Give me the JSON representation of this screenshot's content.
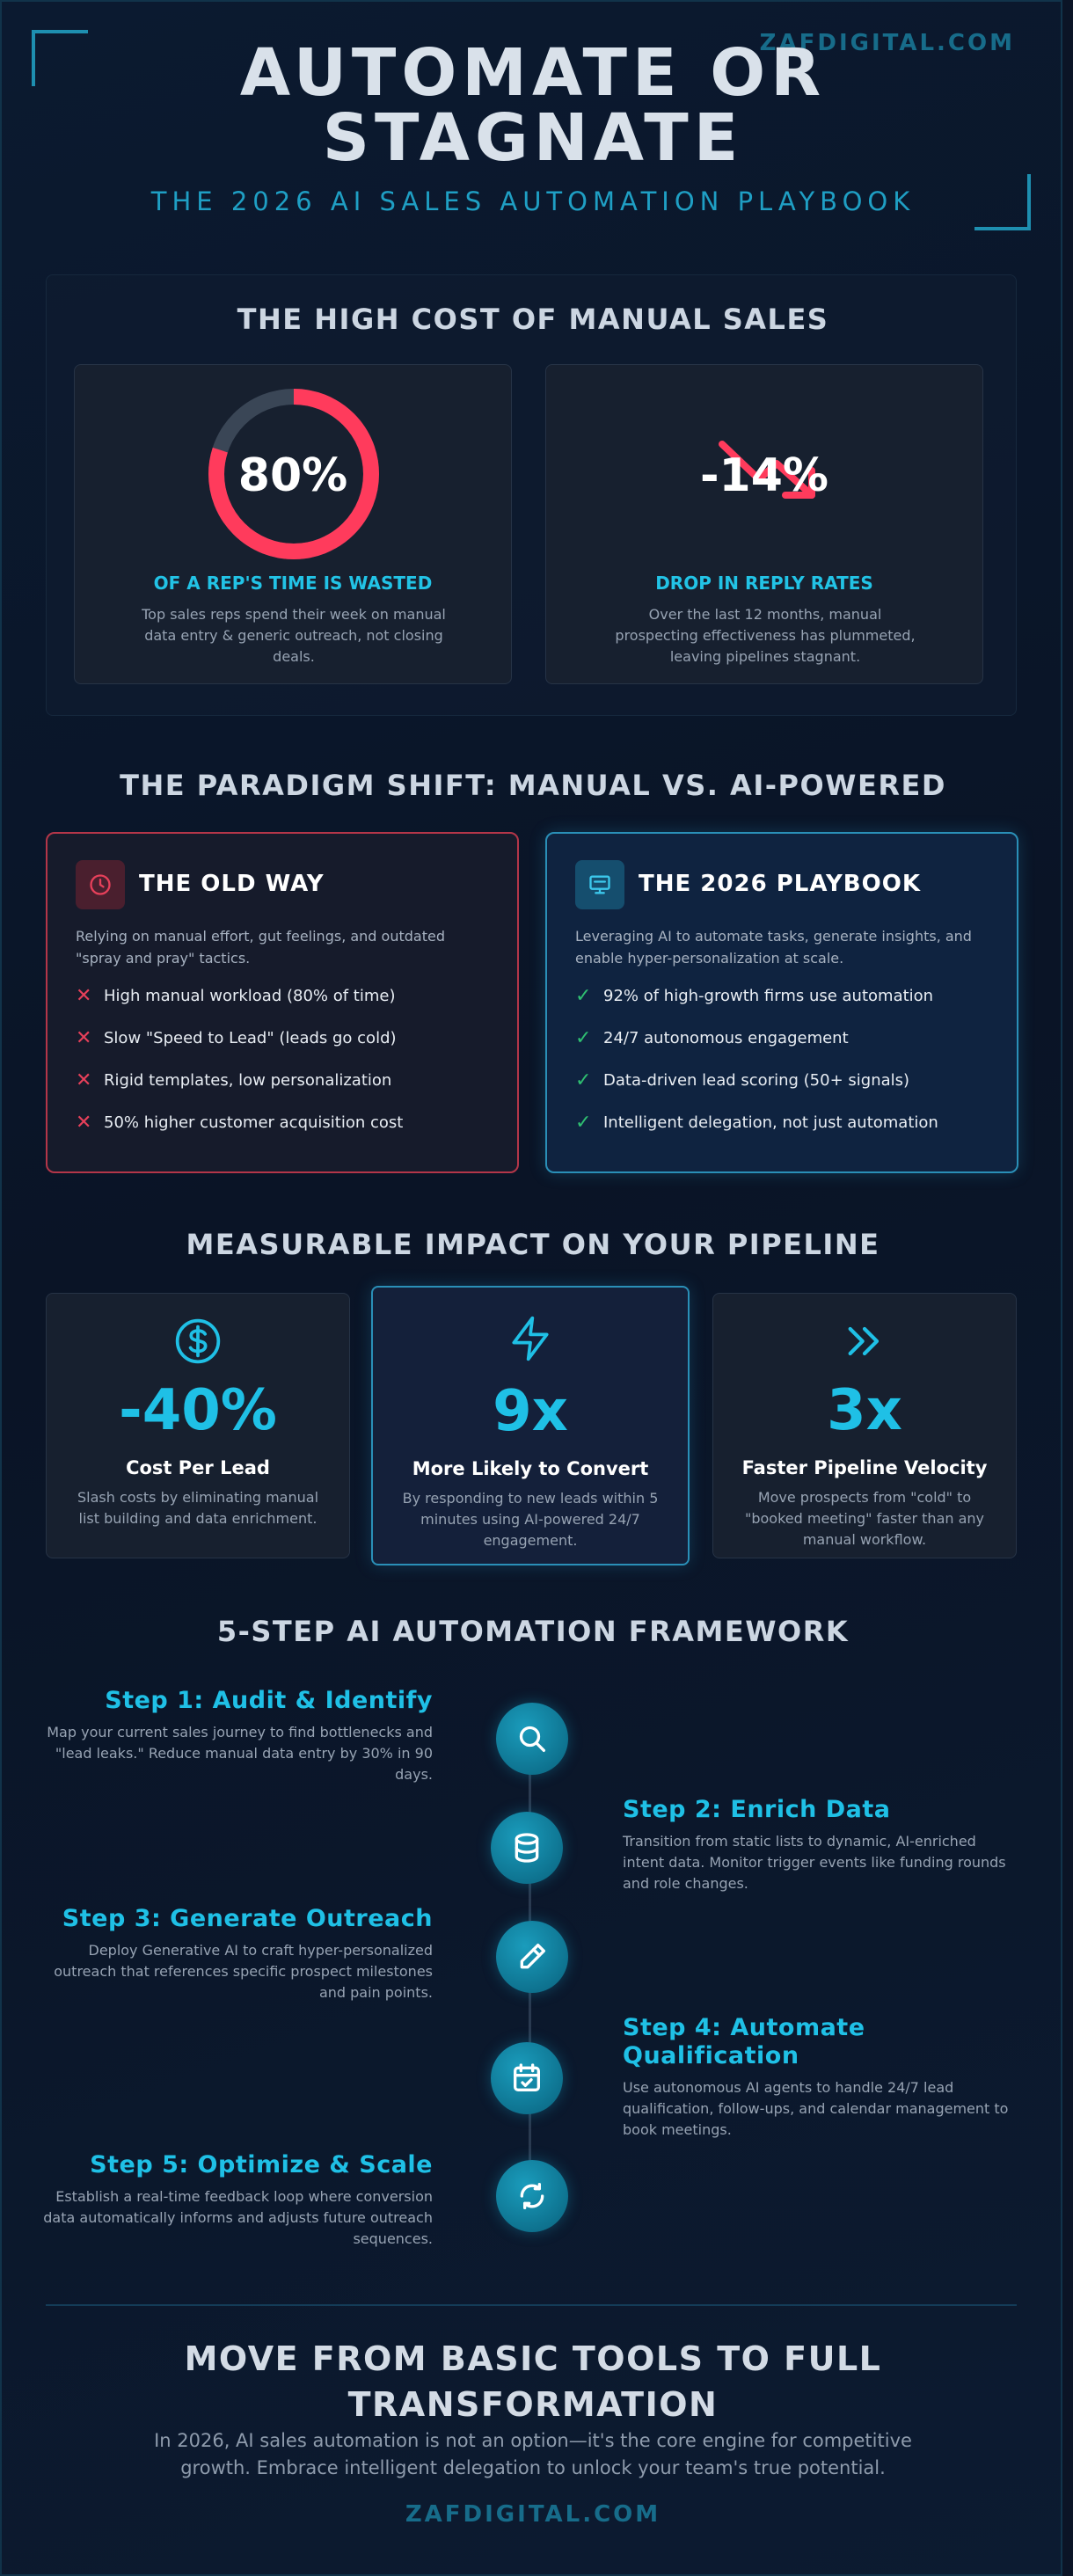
{
  "brand": {
    "top": "ZAFDIGITAL.COM",
    "bottom": "ZAFDIGITAL.COM"
  },
  "hero": {
    "title_line1": "AUTOMATE OR",
    "title_line2": "STAGNATE",
    "subtitle": "THE 2026 AI SALES AUTOMATION PLAYBOOK"
  },
  "cost": {
    "title": "THE HIGH COST OF MANUAL SALES",
    "cards": [
      {
        "value": "80%",
        "fraction": 0.8,
        "caption": "OF A REP'S TIME IS WASTED",
        "description": "Top sales reps spend their week on manual data entry & generic outreach, not closing deals.",
        "icon": "donut-chart-icon"
      },
      {
        "value": "-14%",
        "caption": "DROP IN REPLY RATES",
        "description": "Over the last 12 months, manual prospecting effectiveness has plummeted, leaving pipelines stagnant.",
        "icon": "trend-down-icon"
      }
    ],
    "colors": {
      "accent": "#ff3b5c",
      "track": "#3a4656"
    }
  },
  "paradigm": {
    "title": "THE PARADIGM SHIFT: MANUAL VS. AI-POWERED",
    "old": {
      "heading": "THE OLD WAY",
      "icon": "clock-icon",
      "lead": "Relying on manual effort, gut feelings, and outdated \"spray and pray\" tactics.",
      "items": [
        "High manual workload (80% of time)",
        "Slow \"Speed to Lead\" (leads go cold)",
        "Rigid templates, low personalization",
        "50% higher customer acquisition cost"
      ],
      "marker": "✕"
    },
    "new": {
      "heading": "THE 2026 PLAYBOOK",
      "icon": "monitor-icon",
      "lead": "Leveraging AI to automate tasks, generate insights, and enable hyper-personalization at scale.",
      "items": [
        "92% of high-growth firms use automation",
        "24/7 autonomous engagement",
        "Data-driven lead scoring (50+ signals)",
        "Intelligent delegation, not just automation"
      ],
      "marker": "✓"
    }
  },
  "impact": {
    "title": "MEASURABLE IMPACT ON YOUR PIPELINE",
    "cards": [
      {
        "value": "-40%",
        "label": "Cost Per Lead",
        "description": "Slash costs by eliminating manual list building and data enrichment.",
        "icon": "dollar-icon"
      },
      {
        "value": "9x",
        "label": "More Likely to Convert",
        "description": "By responding to new leads within 5 minutes using AI-powered 24/7 engagement.",
        "icon": "lightning-icon"
      },
      {
        "value": "3x",
        "label": "Faster Pipeline Velocity",
        "description": "Move prospects from \"cold\" to \"booked meeting\" faster than any manual workflow.",
        "icon": "double-chevron-icon"
      }
    ]
  },
  "framework": {
    "title": "5-STEP AI AUTOMATION FRAMEWORK",
    "steps": [
      {
        "title": "Step 1: Audit & Identify",
        "description": "Map your current sales journey to find bottlenecks and \"lead leaks.\" Reduce manual data entry by 30% in 90 days.",
        "icon": "search-icon"
      },
      {
        "title": "Step 2: Enrich Data",
        "description": "Transition from static lists to dynamic, AI-enriched intent data. Monitor trigger events like funding rounds and role changes.",
        "icon": "database-icon"
      },
      {
        "title": "Step 3: Generate Outreach",
        "description": "Deploy Generative AI to craft hyper-personalized outreach that references specific prospect milestones and pain points.",
        "icon": "pencil-icon"
      },
      {
        "title": "Step 4: Automate Qualification",
        "description": "Use autonomous AI agents to handle 24/7 lead qualification, follow-ups, and calendar management to book meetings.",
        "icon": "calendar-check-icon"
      },
      {
        "title": "Step 5: Optimize & Scale",
        "description": "Establish a real-time feedback loop where conversion data automatically informs and adjusts future outreach sequences.",
        "icon": "refresh-icon"
      }
    ]
  },
  "cta": {
    "title_line1": "MOVE FROM BASIC TOOLS TO FULL",
    "title_line2": "TRANSFORMATION",
    "text": "In 2026, AI sales automation is not an option—it's the core engine for competitive growth. Embrace intelligent delegation to unlock your team's true potential."
  }
}
